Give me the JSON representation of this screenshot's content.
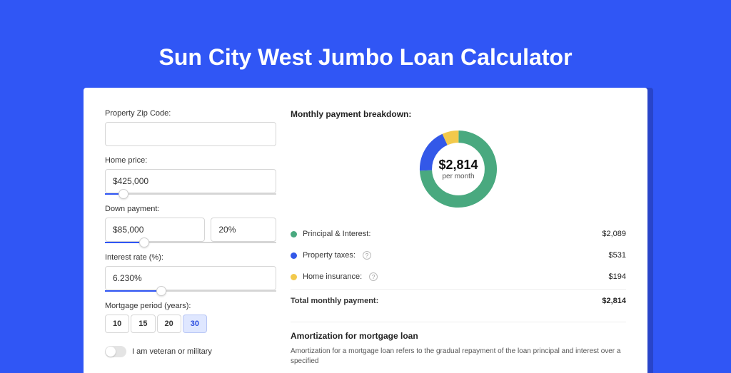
{
  "colors": {
    "page_bg": "#3056f5",
    "card_bg": "#ffffff",
    "accent": "#3056f5",
    "text": "#333333",
    "muted": "#555555",
    "border": "#d6d6d6",
    "pi": "#49a97f",
    "tax": "#3358e8",
    "ins": "#f2c94c"
  },
  "title": "Sun City West Jumbo Loan Calculator",
  "form": {
    "zip": {
      "label": "Property Zip Code:",
      "value": ""
    },
    "home_price": {
      "label": "Home price:",
      "value": "$425,000",
      "slider_pct": 8
    },
    "down_payment": {
      "label": "Down payment:",
      "value": "$85,000",
      "pct": "20%",
      "slider_pct": 20
    },
    "interest": {
      "label": "Interest rate (%):",
      "value": "6.230%",
      "slider_pct": 30
    },
    "period": {
      "label": "Mortgage period (years):",
      "options": [
        "10",
        "15",
        "20",
        "30"
      ],
      "selected": "30"
    },
    "veteran": {
      "label": "I am veteran or military",
      "on": false
    }
  },
  "breakdown": {
    "title": "Monthly payment breakdown:",
    "donut": {
      "value": "$2,814",
      "sub": "per month",
      "slices": [
        {
          "key": "pi",
          "color": "#49a97f",
          "pct": 74.2
        },
        {
          "key": "tax",
          "color": "#3358e8",
          "pct": 18.9
        },
        {
          "key": "ins",
          "color": "#f2c94c",
          "pct": 6.9
        }
      ],
      "thickness": 18
    },
    "rows": [
      {
        "dot": "#49a97f",
        "label": "Principal & Interest:",
        "info": false,
        "value": "$2,089"
      },
      {
        "dot": "#3358e8",
        "label": "Property taxes:",
        "info": true,
        "value": "$531"
      },
      {
        "dot": "#f2c94c",
        "label": "Home insurance:",
        "info": true,
        "value": "$194"
      }
    ],
    "total": {
      "label": "Total monthly payment:",
      "value": "$2,814"
    }
  },
  "amortization": {
    "title": "Amortization for mortgage loan",
    "text": "Amortization for a mortgage loan refers to the gradual repayment of the loan principal and interest over a specified"
  }
}
